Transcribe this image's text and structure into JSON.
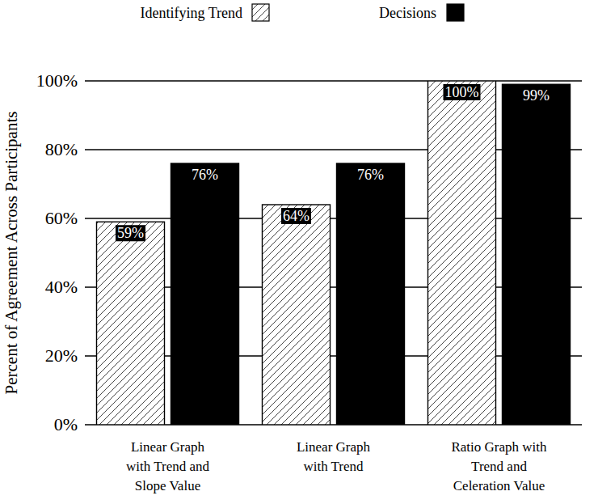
{
  "chart_data": {
    "type": "bar",
    "y_label": "Percent of Agreement Across Participants",
    "categories": [
      "Linear Graph\nwith Trend and\nSlope Value",
      "Linear Graph\nwith Trend",
      "Ratio Graph with\nTrend and\nCeleration Value"
    ],
    "series": [
      {
        "name": "Identifying Trend",
        "color": "#ffffff",
        "values": [
          59,
          64,
          100
        ],
        "value_labels": [
          "59%",
          "64%",
          "100%"
        ]
      },
      {
        "name": "Decisions",
        "color": "#000000",
        "values": [
          76,
          76,
          99
        ],
        "value_labels": [
          "76%",
          "76%",
          "99%"
        ]
      }
    ],
    "ylim": [
      0,
      100
    ],
    "yticks": [
      {
        "value": 0,
        "label": "0%"
      },
      {
        "value": 20,
        "label": "20%"
      },
      {
        "value": 40,
        "label": "40%"
      },
      {
        "value": 60,
        "label": "60%"
      },
      {
        "value": 80,
        "label": "80%"
      },
      {
        "value": 100,
        "label": "100%"
      }
    ],
    "grid": true,
    "data_labels": true,
    "legend": "top"
  }
}
